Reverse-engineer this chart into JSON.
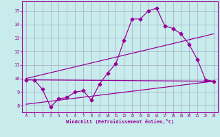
{
  "title": "",
  "xlabel": "Windchill (Refroidissement éolien,°C)",
  "xlim": [
    -0.5,
    23.5
  ],
  "ylim": [
    7.5,
    15.7
  ],
  "xticks": [
    0,
    1,
    2,
    3,
    4,
    5,
    6,
    7,
    8,
    9,
    10,
    11,
    12,
    13,
    14,
    15,
    16,
    17,
    18,
    19,
    20,
    21,
    22,
    23
  ],
  "yticks": [
    8,
    9,
    10,
    11,
    12,
    13,
    14,
    15
  ],
  "bg_color": "#c8ecec",
  "line_color": "#990099",
  "grid_color": "#9999bb",
  "curve_x": [
    0,
    1,
    2,
    3,
    4,
    5,
    6,
    7,
    8,
    9,
    10,
    11,
    12,
    13,
    14,
    15,
    16,
    17,
    18,
    19,
    20,
    21,
    22,
    23
  ],
  "curve_y": [
    9.9,
    9.9,
    9.2,
    7.9,
    8.5,
    8.6,
    9.0,
    9.1,
    8.4,
    9.6,
    10.4,
    11.1,
    12.8,
    14.4,
    14.4,
    15.0,
    15.2,
    13.9,
    13.7,
    13.3,
    12.5,
    11.4,
    9.9,
    9.8
  ],
  "line2_x": [
    0,
    23
  ],
  "line2_y": [
    10.0,
    13.3
  ],
  "line3_x": [
    0,
    23
  ],
  "line3_y": [
    9.9,
    9.8
  ],
  "line4_x": [
    0,
    23
  ],
  "line4_y": [
    8.1,
    9.8
  ]
}
